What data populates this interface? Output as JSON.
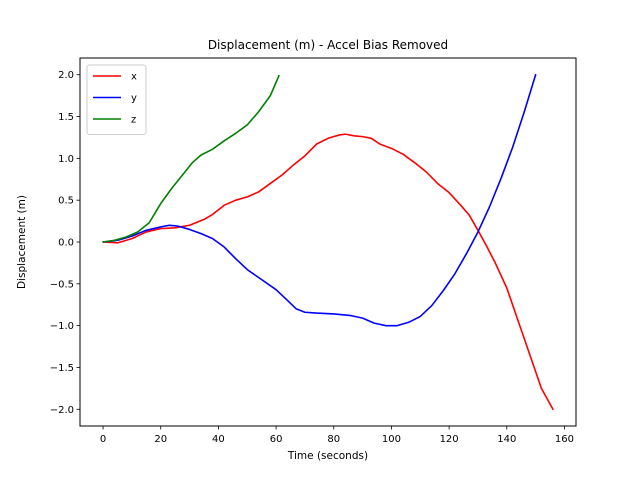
{
  "chart_data": {
    "type": "line",
    "title": "Displacement (m) - Accel Bias Removed",
    "xlabel": "Time (seconds)",
    "ylabel": "Displacement (m)",
    "xlim": [
      -8,
      164
    ],
    "ylim": [
      -2.2,
      2.2
    ],
    "xticks": [
      0,
      20,
      40,
      60,
      80,
      100,
      120,
      140,
      160
    ],
    "yticks": [
      -2.0,
      -1.5,
      -1.0,
      -0.5,
      0.0,
      0.5,
      1.0,
      1.5,
      2.0
    ],
    "xtick_labels": [
      "0",
      "20",
      "40",
      "60",
      "80",
      "100",
      "120",
      "140",
      "160"
    ],
    "ytick_labels": [
      "−2.0",
      "−1.5",
      "−1.0",
      "−0.5",
      "0.0",
      "0.5",
      "1.0",
      "1.5",
      "2.0"
    ],
    "grid": false,
    "legend_position": "upper-left",
    "series": [
      {
        "name": "x",
        "color": "#ff0000",
        "points": [
          [
            0,
            0.0
          ],
          [
            5,
            -0.01
          ],
          [
            10,
            0.04
          ],
          [
            15,
            0.12
          ],
          [
            20,
            0.16
          ],
          [
            25,
            0.17
          ],
          [
            30,
            0.2
          ],
          [
            35,
            0.27
          ],
          [
            38,
            0.33
          ],
          [
            42,
            0.44
          ],
          [
            46,
            0.5
          ],
          [
            50,
            0.54
          ],
          [
            54,
            0.6
          ],
          [
            58,
            0.7
          ],
          [
            62,
            0.8
          ],
          [
            66,
            0.92
          ],
          [
            70,
            1.03
          ],
          [
            74,
            1.17
          ],
          [
            78,
            1.24
          ],
          [
            82,
            1.28
          ],
          [
            84,
            1.29
          ],
          [
            87,
            1.27
          ],
          [
            90,
            1.26
          ],
          [
            93,
            1.24
          ],
          [
            96,
            1.17
          ],
          [
            100,
            1.12
          ],
          [
            104,
            1.05
          ],
          [
            108,
            0.95
          ],
          [
            112,
            0.84
          ],
          [
            116,
            0.7
          ],
          [
            120,
            0.59
          ],
          [
            124,
            0.44
          ],
          [
            127,
            0.32
          ],
          [
            130,
            0.14
          ],
          [
            133,
            -0.05
          ],
          [
            136,
            -0.25
          ],
          [
            140,
            -0.55
          ],
          [
            144,
            -0.95
          ],
          [
            148,
            -1.35
          ],
          [
            152,
            -1.75
          ],
          [
            156,
            -2.0
          ]
        ]
      },
      {
        "name": "y",
        "color": "#0000ff",
        "points": [
          [
            0,
            0.0
          ],
          [
            5,
            0.02
          ],
          [
            10,
            0.07
          ],
          [
            15,
            0.14
          ],
          [
            20,
            0.18
          ],
          [
            23,
            0.2
          ],
          [
            26,
            0.19
          ],
          [
            30,
            0.15
          ],
          [
            34,
            0.1
          ],
          [
            38,
            0.04
          ],
          [
            42,
            -0.06
          ],
          [
            46,
            -0.2
          ],
          [
            50,
            -0.33
          ],
          [
            55,
            -0.45
          ],
          [
            60,
            -0.57
          ],
          [
            64,
            -0.7
          ],
          [
            67,
            -0.8
          ],
          [
            70,
            -0.84
          ],
          [
            74,
            -0.85
          ],
          [
            80,
            -0.86
          ],
          [
            86,
            -0.88
          ],
          [
            90,
            -0.91
          ],
          [
            94,
            -0.97
          ],
          [
            98,
            -1.0
          ],
          [
            102,
            -1.0
          ],
          [
            106,
            -0.96
          ],
          [
            110,
            -0.89
          ],
          [
            114,
            -0.76
          ],
          [
            118,
            -0.58
          ],
          [
            122,
            -0.38
          ],
          [
            126,
            -0.14
          ],
          [
            130,
            0.12
          ],
          [
            134,
            0.42
          ],
          [
            138,
            0.76
          ],
          [
            142,
            1.13
          ],
          [
            146,
            1.55
          ],
          [
            150,
            2.0
          ]
        ]
      },
      {
        "name": "z",
        "color": "#008000",
        "points": [
          [
            0,
            0.0
          ],
          [
            4,
            0.02
          ],
          [
            8,
            0.06
          ],
          [
            12,
            0.12
          ],
          [
            16,
            0.23
          ],
          [
            20,
            0.46
          ],
          [
            24,
            0.65
          ],
          [
            28,
            0.82
          ],
          [
            31,
            0.95
          ],
          [
            34,
            1.04
          ],
          [
            38,
            1.11
          ],
          [
            42,
            1.21
          ],
          [
            46,
            1.3
          ],
          [
            50,
            1.4
          ],
          [
            54,
            1.56
          ],
          [
            58,
            1.75
          ],
          [
            61,
            1.99
          ]
        ]
      }
    ]
  }
}
